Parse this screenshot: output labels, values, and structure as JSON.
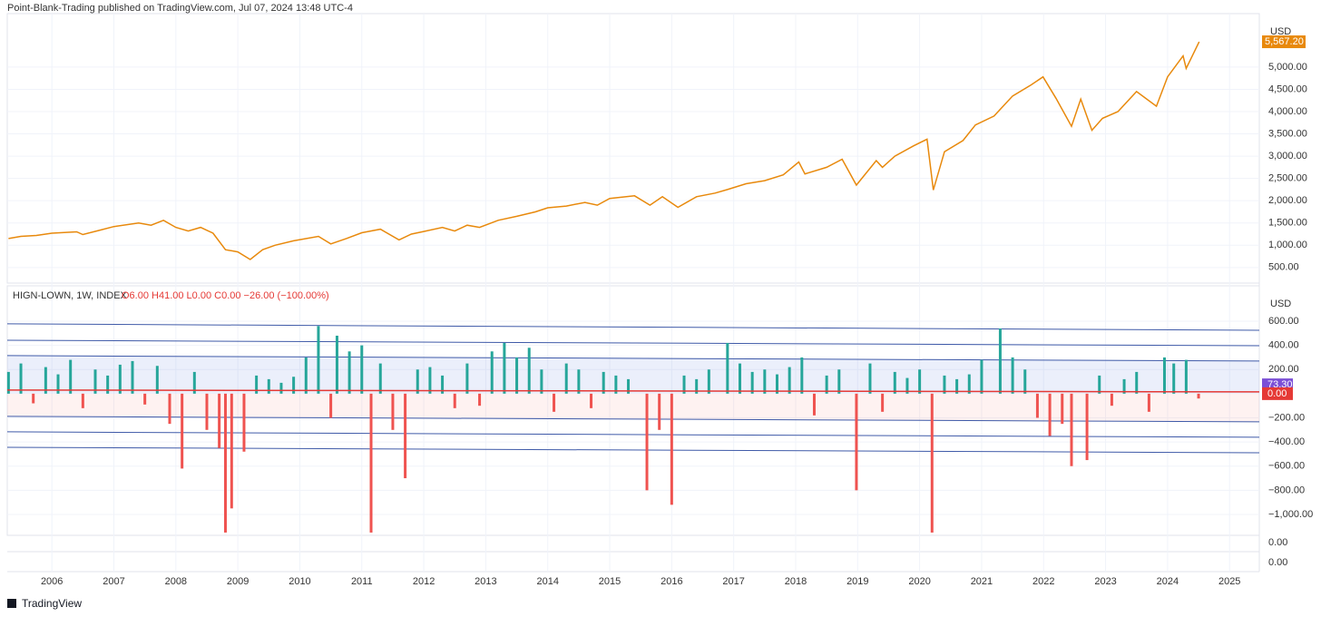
{
  "header": {
    "text": "Point-Blank-Trading published on TradingView.com, Jul 07, 2024 13:48 UTC-4"
  },
  "footer": {
    "brand": "TradingView"
  },
  "chart_data": [
    {
      "type": "line",
      "currency": "USD",
      "color": "#e8890c",
      "xlim": [
        2005.28,
        2025.48
      ],
      "ylim": [
        150,
        6200
      ],
      "yticks": [
        {
          "value": 500,
          "label": "500.00"
        },
        {
          "value": 1000,
          "label": "1,000.00"
        },
        {
          "value": 1500,
          "label": "1,500.00"
        },
        {
          "value": 2000,
          "label": "2,000.00"
        },
        {
          "value": 2500,
          "label": "2,500.00"
        },
        {
          "value": 3000,
          "label": "3,000.00"
        },
        {
          "value": 3500,
          "label": "3,500.00"
        },
        {
          "value": 4000,
          "label": "4,000.00"
        },
        {
          "value": 4500,
          "label": "4,500.00"
        },
        {
          "value": 5000,
          "label": "5,000.00"
        }
      ],
      "last_label": {
        "value": 5567.2,
        "label": "5,567.20"
      },
      "x": [
        2005.3,
        2005.5,
        2005.75,
        2006,
        2006.4,
        2006.5,
        2006.75,
        2007,
        2007.4,
        2007.6,
        2007.8,
        2008,
        2008.2,
        2008.4,
        2008.6,
        2008.8,
        2009,
        2009.2,
        2009.4,
        2009.6,
        2009.9,
        2010.3,
        2010.5,
        2010.75,
        2011,
        2011.3,
        2011.6,
        2011.8,
        2012,
        2012.3,
        2012.5,
        2012.7,
        2012.9,
        2013.2,
        2013.5,
        2013.8,
        2014,
        2014.3,
        2014.6,
        2014.8,
        2015,
        2015.4,
        2015.65,
        2015.85,
        2016.1,
        2016.4,
        2016.7,
        2016.9,
        2017.2,
        2017.5,
        2017.8,
        2018.05,
        2018.15,
        2018.5,
        2018.75,
        2018.98,
        2019.3,
        2019.4,
        2019.6,
        2019.9,
        2020.12,
        2020.22,
        2020.4,
        2020.7,
        2020.9,
        2021.2,
        2021.5,
        2021.8,
        2021.99,
        2022.2,
        2022.45,
        2022.6,
        2022.78,
        2022.95,
        2023.2,
        2023.5,
        2023.82,
        2024.0,
        2024.25,
        2024.3,
        2024.51
      ],
      "values": [
        1150,
        1200,
        1220,
        1270,
        1300,
        1240,
        1330,
        1420,
        1500,
        1450,
        1560,
        1400,
        1320,
        1400,
        1270,
        900,
        850,
        680,
        900,
        1000,
        1100,
        1200,
        1030,
        1150,
        1280,
        1360,
        1120,
        1250,
        1310,
        1400,
        1320,
        1450,
        1400,
        1560,
        1650,
        1750,
        1840,
        1880,
        1960,
        1900,
        2050,
        2110,
        1900,
        2090,
        1850,
        2090,
        2170,
        2250,
        2380,
        2450,
        2580,
        2870,
        2600,
        2750,
        2930,
        2350,
        2900,
        2750,
        3000,
        3230,
        3380,
        2240,
        3100,
        3350,
        3700,
        3900,
        4350,
        4600,
        4780,
        4300,
        3670,
        4280,
        3580,
        3850,
        4000,
        4450,
        4120,
        4780,
        5250,
        4970,
        5567.2
      ]
    },
    {
      "type": "bar",
      "currency": "USD",
      "legend_title": "HIGN-LOWN, 1W, INDEX",
      "legend_values": "O6.00 H41.00 L0.00 C0.00 −26.00 (−100.00%)",
      "up_color": "#26a69a",
      "down_color": "#ef5350",
      "xlim": [
        2005.28,
        2025.48
      ],
      "ylim": [
        -1173,
        893
      ],
      "xticks": [
        2006,
        2007,
        2008,
        2009,
        2010,
        2011,
        2012,
        2013,
        2014,
        2015,
        2016,
        2017,
        2018,
        2019,
        2020,
        2021,
        2022,
        2023,
        2024,
        2025
      ],
      "yticks": [
        {
          "value": 600,
          "label": "600.00"
        },
        {
          "value": 400,
          "label": "400.00"
        },
        {
          "value": 200,
          "label": "200.00"
        },
        {
          "value": -200,
          "label": "−200.00"
        },
        {
          "value": -400,
          "label": "−400.00"
        },
        {
          "value": -600,
          "label": "−600.00"
        },
        {
          "value": -800,
          "label": "−800.00"
        },
        {
          "value": -1000,
          "label": "−1,000.00"
        }
      ],
      "bands": [
        {
          "start": 578,
          "end": 525,
          "color": "#3f5aa8"
        },
        {
          "start": 442,
          "end": 397,
          "color": "#3f5aa8"
        },
        {
          "start": 315,
          "end": 270,
          "color": "#3f5aa8"
        },
        {
          "start": -188,
          "end": -233,
          "color": "#3f5aa8"
        },
        {
          "start": -316,
          "end": -361,
          "color": "#3f5aa8"
        },
        {
          "start": -444,
          "end": -489,
          "color": "#3f5aa8"
        }
      ],
      "signal_line": {
        "start": 30,
        "end": 15,
        "color": "#e53935"
      },
      "upper_fill": "rgba(120,150,230,0.15)",
      "lower_fill": "rgba(239,83,80,0.08)",
      "last_labels": [
        {
          "value": 73.3,
          "label": "73.30",
          "color": "#7b4fd6"
        },
        {
          "value": 0,
          "label": "0.00",
          "color": "#e53935"
        }
      ],
      "x": [
        2005.3,
        2005.5,
        2005.7,
        2005.9,
        2006.1,
        2006.3,
        2006.5,
        2006.7,
        2006.9,
        2007.1,
        2007.3,
        2007.5,
        2007.7,
        2007.9,
        2008.1,
        2008.3,
        2008.5,
        2008.7,
        2008.8,
        2008.9,
        2009.1,
        2009.3,
        2009.5,
        2009.7,
        2009.9,
        2010.1,
        2010.3,
        2010.5,
        2010.6,
        2010.8,
        2011.0,
        2011.15,
        2011.3,
        2011.5,
        2011.7,
        2011.9,
        2012.1,
        2012.3,
        2012.5,
        2012.7,
        2012.9,
        2013.1,
        2013.3,
        2013.5,
        2013.7,
        2013.9,
        2014.1,
        2014.3,
        2014.5,
        2014.7,
        2014.9,
        2015.1,
        2015.3,
        2015.6,
        2015.8,
        2016.0,
        2016.2,
        2016.4,
        2016.6,
        2016.9,
        2017.1,
        2017.3,
        2017.5,
        2017.7,
        2017.9,
        2018.1,
        2018.3,
        2018.5,
        2018.7,
        2018.98,
        2019.2,
        2019.4,
        2019.6,
        2019.8,
        2020.0,
        2020.2,
        2020.4,
        2020.6,
        2020.8,
        2021.0,
        2021.3,
        2021.5,
        2021.7,
        2021.9,
        2022.1,
        2022.3,
        2022.45,
        2022.7,
        2022.9,
        2023.1,
        2023.3,
        2023.5,
        2023.7,
        2023.95,
        2024.1,
        2024.3,
        2024.5
      ],
      "values": [
        180,
        250,
        -80,
        220,
        160,
        280,
        -120,
        200,
        150,
        240,
        270,
        -90,
        230,
        -250,
        -620,
        180,
        -300,
        -450,
        -1150,
        -950,
        -480,
        150,
        120,
        90,
        140,
        300,
        560,
        -200,
        480,
        350,
        400,
        -1150,
        250,
        -300,
        -700,
        200,
        220,
        150,
        -120,
        250,
        -100,
        350,
        420,
        300,
        380,
        200,
        -150,
        250,
        200,
        -120,
        180,
        150,
        120,
        -800,
        -300,
        -920,
        150,
        120,
        200,
        420,
        250,
        180,
        200,
        160,
        220,
        300,
        -180,
        150,
        200,
        -800,
        250,
        -150,
        180,
        130,
        200,
        -1150,
        150,
        120,
        160,
        280,
        540,
        300,
        200,
        -200,
        -350,
        -250,
        -600,
        -550,
        150,
        -100,
        120,
        180,
        -150,
        300,
        250,
        280,
        -40
      ]
    }
  ],
  "extra_pane_labels": [
    "0.00",
    "0.00"
  ]
}
